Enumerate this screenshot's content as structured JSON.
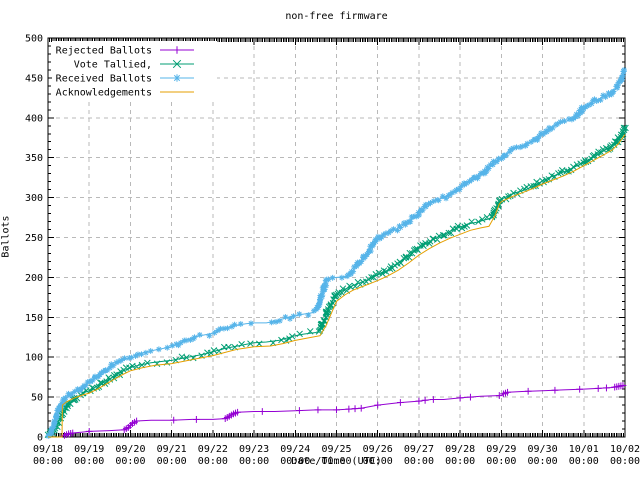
{
  "title": "non-free firmware",
  "axes": {
    "ylabel": "Ballots",
    "xlabel": "Date/Time (UTC)",
    "y_ticks": [
      0,
      50,
      100,
      150,
      200,
      250,
      300,
      350,
      400,
      450,
      500
    ],
    "x_ticks": [
      {
        "date": "09/18",
        "time": "00:00"
      },
      {
        "date": "09/19",
        "time": "00:00"
      },
      {
        "date": "09/20",
        "time": "00:00"
      },
      {
        "date": "09/21",
        "time": "00:00"
      },
      {
        "date": "09/22",
        "time": "00:00"
      },
      {
        "date": "09/23",
        "time": "00:00"
      },
      {
        "date": "09/24",
        "time": "00:00"
      },
      {
        "date": "09/25",
        "time": "00:00"
      },
      {
        "date": "09/26",
        "time": "00:00"
      },
      {
        "date": "09/27",
        "time": "00:00"
      },
      {
        "date": "09/28",
        "time": "00:00"
      },
      {
        "date": "09/29",
        "time": "00:00"
      },
      {
        "date": "09/30",
        "time": "00:00"
      },
      {
        "date": "10/01",
        "time": "00:00"
      },
      {
        "date": "10/02",
        "time": "00:00"
      }
    ]
  },
  "legend": [
    {
      "label": "Rejected Ballots",
      "color": "#9400d3",
      "marker": "plus"
    },
    {
      "label": "Vote Tallied,",
      "color": "#009e73",
      "marker": "cross"
    },
    {
      "label": "Received Ballots",
      "color": "#56b4e9",
      "marker": "star"
    },
    {
      "label": "Acknowledgements",
      "color": "#e69f00",
      "marker": "none"
    }
  ],
  "colors": {
    "grid": "#b9b9b9",
    "border": "#000000",
    "background": "#ffffff"
  },
  "chart_data": {
    "type": "line",
    "title": "non-free firmware",
    "xlabel": "Date/Time (UTC)",
    "ylabel": "Ballots",
    "xlim": [
      0,
      14
    ],
    "ylim": [
      0,
      500
    ],
    "x_unit": "days since 09/18 00:00 UTC",
    "grid": "dashed",
    "legend_position": "top-left-inside",
    "series": [
      {
        "name": "Rejected Ballots",
        "color": "#9400d3",
        "marker": "plus",
        "points": [
          [
            0,
            0
          ],
          [
            0.3,
            0
          ],
          [
            0.4,
            2
          ],
          [
            0.5,
            4
          ],
          [
            0.6,
            5
          ],
          [
            0.8,
            6
          ],
          [
            1.0,
            7
          ],
          [
            1.5,
            8
          ],
          [
            1.85,
            9
          ],
          [
            1.95,
            12
          ],
          [
            2.05,
            17
          ],
          [
            2.15,
            20
          ],
          [
            2.5,
            21
          ],
          [
            3.0,
            21
          ],
          [
            3.5,
            22
          ],
          [
            4.0,
            22
          ],
          [
            4.3,
            23
          ],
          [
            4.4,
            26
          ],
          [
            4.5,
            29
          ],
          [
            4.6,
            31
          ],
          [
            5.0,
            32
          ],
          [
            5.5,
            32
          ],
          [
            6.0,
            33
          ],
          [
            6.5,
            34
          ],
          [
            7.0,
            34
          ],
          [
            7.3,
            35
          ],
          [
            7.6,
            36
          ],
          [
            8.0,
            40
          ],
          [
            8.5,
            43
          ],
          [
            9.0,
            45
          ],
          [
            9.3,
            47
          ],
          [
            9.6,
            47
          ],
          [
            10.0,
            49
          ],
          [
            10.5,
            51
          ],
          [
            11.0,
            52
          ],
          [
            11.05,
            54
          ],
          [
            11.15,
            56
          ],
          [
            11.5,
            57
          ],
          [
            12.0,
            58
          ],
          [
            12.5,
            59
          ],
          [
            13.0,
            60
          ],
          [
            13.4,
            61
          ],
          [
            13.7,
            62
          ],
          [
            13.8,
            63
          ],
          [
            13.9,
            64
          ],
          [
            14.0,
            65
          ]
        ],
        "marker_days": [
          0.4,
          0.45,
          0.5,
          0.55,
          0.6,
          1.0,
          1.85,
          1.9,
          1.95,
          2.0,
          2.05,
          2.1,
          2.15,
          3.05,
          3.6,
          4.3,
          4.35,
          4.4,
          4.45,
          4.5,
          4.55,
          4.6,
          5.2,
          6.1,
          6.55,
          7.0,
          7.3,
          7.45,
          7.6,
          8.0,
          8.55,
          9.0,
          9.15,
          9.35,
          10.0,
          10.25,
          10.95,
          11.05,
          11.1,
          11.15,
          11.65,
          12.3,
          12.9,
          13.35,
          13.55,
          13.75,
          13.8,
          13.85,
          13.9,
          13.95
        ]
      },
      {
        "name": "Vote Tallied,",
        "color": "#009e73",
        "marker": "cross",
        "points": [
          [
            0,
            0
          ],
          [
            0.1,
            6
          ],
          [
            0.2,
            14
          ],
          [
            0.3,
            26
          ],
          [
            0.4,
            34
          ],
          [
            0.5,
            41
          ],
          [
            0.6,
            46
          ],
          [
            0.7,
            50
          ],
          [
            0.8,
            53
          ],
          [
            0.9,
            56
          ],
          [
            1.0,
            58
          ],
          [
            1.2,
            64
          ],
          [
            1.4,
            70
          ],
          [
            1.6,
            76
          ],
          [
            1.8,
            82
          ],
          [
            2.0,
            87
          ],
          [
            2.2,
            90
          ],
          [
            2.5,
            93
          ],
          [
            2.8,
            95
          ],
          [
            3.0,
            96
          ],
          [
            3.3,
            99
          ],
          [
            3.6,
            102
          ],
          [
            3.8,
            104
          ],
          [
            4.0,
            107
          ],
          [
            4.3,
            111
          ],
          [
            4.6,
            114
          ],
          [
            4.8,
            116
          ],
          [
            5.0,
            118
          ],
          [
            5.3,
            119
          ],
          [
            5.6,
            121
          ],
          [
            5.8,
            124
          ],
          [
            6.0,
            127
          ],
          [
            6.2,
            129
          ],
          [
            6.5,
            131
          ],
          [
            6.6,
            133
          ],
          [
            6.7,
            146
          ],
          [
            6.8,
            160
          ],
          [
            6.9,
            170
          ],
          [
            7.0,
            179
          ],
          [
            7.2,
            185
          ],
          [
            7.4,
            190
          ],
          [
            7.6,
            194
          ],
          [
            7.8,
            198
          ],
          [
            8.0,
            203
          ],
          [
            8.2,
            208
          ],
          [
            8.4,
            214
          ],
          [
            8.6,
            221
          ],
          [
            8.8,
            229
          ],
          [
            9.0,
            237
          ],
          [
            9.2,
            243
          ],
          [
            9.4,
            249
          ],
          [
            9.6,
            254
          ],
          [
            9.8,
            259
          ],
          [
            10.0,
            263
          ],
          [
            10.2,
            267
          ],
          [
            10.4,
            269
          ],
          [
            10.6,
            272
          ],
          [
            10.75,
            274
          ],
          [
            10.85,
            284
          ],
          [
            10.95,
            295
          ],
          [
            11.0,
            298
          ],
          [
            11.2,
            303
          ],
          [
            11.4,
            307
          ],
          [
            11.6,
            310
          ],
          [
            11.8,
            315
          ],
          [
            12.0,
            321
          ],
          [
            12.2,
            326
          ],
          [
            12.4,
            330
          ],
          [
            12.6,
            334
          ],
          [
            12.8,
            339
          ],
          [
            13.0,
            344
          ],
          [
            13.2,
            350
          ],
          [
            13.4,
            356
          ],
          [
            13.6,
            362
          ],
          [
            13.75,
            368
          ],
          [
            13.85,
            374
          ],
          [
            13.95,
            382
          ],
          [
            14.0,
            388
          ]
        ]
      },
      {
        "name": "Received Ballots",
        "color": "#56b4e9",
        "marker": "star",
        "points": [
          [
            0,
            0
          ],
          [
            0.05,
            3
          ],
          [
            0.1,
            10
          ],
          [
            0.15,
            18
          ],
          [
            0.2,
            26
          ],
          [
            0.3,
            40
          ],
          [
            0.4,
            48
          ],
          [
            0.5,
            53
          ],
          [
            0.6,
            56
          ],
          [
            0.7,
            58
          ],
          [
            0.8,
            62
          ],
          [
            0.9,
            65
          ],
          [
            1.0,
            68
          ],
          [
            1.1,
            72
          ],
          [
            1.2,
            76
          ],
          [
            1.35,
            82
          ],
          [
            1.5,
            88
          ],
          [
            1.7,
            93
          ],
          [
            1.9,
            98
          ],
          [
            2.0,
            100
          ],
          [
            2.2,
            104
          ],
          [
            2.4,
            107
          ],
          [
            2.6,
            109
          ],
          [
            2.8,
            111
          ],
          [
            3.0,
            113
          ],
          [
            3.2,
            118
          ],
          [
            3.4,
            122
          ],
          [
            3.6,
            126
          ],
          [
            3.8,
            128
          ],
          [
            4.0,
            130
          ],
          [
            4.2,
            134
          ],
          [
            4.4,
            137
          ],
          [
            4.6,
            140
          ],
          [
            4.8,
            142
          ],
          [
            5.0,
            143
          ],
          [
            5.3,
            143
          ],
          [
            5.5,
            145
          ],
          [
            5.7,
            148
          ],
          [
            5.9,
            151
          ],
          [
            6.0,
            152
          ],
          [
            6.2,
            154
          ],
          [
            6.45,
            156
          ],
          [
            6.55,
            162
          ],
          [
            6.65,
            180
          ],
          [
            6.75,
            196
          ],
          [
            6.85,
            199
          ],
          [
            7.0,
            200
          ],
          [
            7.25,
            201
          ],
          [
            7.35,
            206
          ],
          [
            7.5,
            215
          ],
          [
            7.65,
            224
          ],
          [
            7.8,
            233
          ],
          [
            7.9,
            242
          ],
          [
            8.0,
            250
          ],
          [
            8.1,
            253
          ],
          [
            8.3,
            257
          ],
          [
            8.5,
            262
          ],
          [
            8.7,
            268
          ],
          [
            8.9,
            276
          ],
          [
            9.0,
            281
          ],
          [
            9.1,
            287
          ],
          [
            9.25,
            293
          ],
          [
            9.4,
            296
          ],
          [
            9.6,
            300
          ],
          [
            9.8,
            305
          ],
          [
            9.9,
            308
          ],
          [
            10.0,
            313
          ],
          [
            10.15,
            318
          ],
          [
            10.3,
            322
          ],
          [
            10.45,
            327
          ],
          [
            10.6,
            333
          ],
          [
            10.8,
            342
          ],
          [
            11.0,
            350
          ],
          [
            11.2,
            358
          ],
          [
            11.4,
            363
          ],
          [
            11.6,
            367
          ],
          [
            11.8,
            372
          ],
          [
            12.0,
            380
          ],
          [
            12.2,
            388
          ],
          [
            12.4,
            393
          ],
          [
            12.6,
            396
          ],
          [
            12.8,
            400
          ],
          [
            13.0,
            413
          ],
          [
            13.15,
            418
          ],
          [
            13.3,
            422
          ],
          [
            13.5,
            427
          ],
          [
            13.65,
            431
          ],
          [
            13.8,
            438
          ],
          [
            13.9,
            448
          ],
          [
            14.0,
            460
          ]
        ]
      },
      {
        "name": "Acknowledgements",
        "color": "#e69f00",
        "marker": "none",
        "points": [
          [
            0,
            0
          ],
          [
            0.34,
            0
          ],
          [
            0.35,
            40
          ],
          [
            0.45,
            44
          ],
          [
            0.6,
            48
          ],
          [
            0.8,
            52
          ],
          [
            1.0,
            55
          ],
          [
            1.2,
            60
          ],
          [
            1.4,
            66
          ],
          [
            1.6,
            72
          ],
          [
            1.8,
            78
          ],
          [
            2.0,
            83
          ],
          [
            2.3,
            87
          ],
          [
            2.6,
            90
          ],
          [
            3.0,
            92
          ],
          [
            3.3,
            95
          ],
          [
            3.6,
            98
          ],
          [
            4.0,
            102
          ],
          [
            4.3,
            106
          ],
          [
            4.6,
            110
          ],
          [
            5.0,
            113
          ],
          [
            5.4,
            114
          ],
          [
            5.7,
            117
          ],
          [
            6.0,
            121
          ],
          [
            6.3,
            124
          ],
          [
            6.6,
            127
          ],
          [
            6.75,
            140
          ],
          [
            6.9,
            158
          ],
          [
            7.0,
            170
          ],
          [
            7.2,
            178
          ],
          [
            7.4,
            184
          ],
          [
            7.6,
            188
          ],
          [
            7.8,
            192
          ],
          [
            8.0,
            196
          ],
          [
            8.25,
            202
          ],
          [
            8.5,
            209
          ],
          [
            8.75,
            218
          ],
          [
            9.0,
            228
          ],
          [
            9.25,
            236
          ],
          [
            9.5,
            243
          ],
          [
            9.75,
            249
          ],
          [
            10.0,
            254
          ],
          [
            10.25,
            259
          ],
          [
            10.5,
            262
          ],
          [
            10.7,
            264
          ],
          [
            10.85,
            278
          ],
          [
            10.95,
            292
          ],
          [
            11.0,
            295
          ],
          [
            11.25,
            301
          ],
          [
            11.5,
            306
          ],
          [
            11.75,
            311
          ],
          [
            12.0,
            317
          ],
          [
            12.25,
            322
          ],
          [
            12.5,
            327
          ],
          [
            12.75,
            333
          ],
          [
            13.0,
            340
          ],
          [
            13.25,
            347
          ],
          [
            13.5,
            354
          ],
          [
            13.7,
            360
          ],
          [
            13.85,
            368
          ],
          [
            14.0,
            379
          ]
        ]
      }
    ]
  }
}
